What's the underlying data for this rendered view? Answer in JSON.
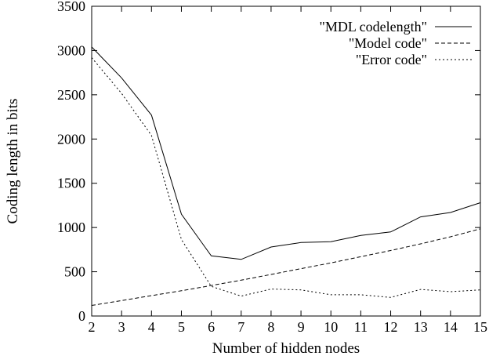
{
  "chart_data": {
    "type": "line",
    "title": "",
    "xlabel": "Number of hidden nodes",
    "ylabel": "Coding length in bits",
    "xlim": [
      2,
      15
    ],
    "ylim": [
      0,
      3500
    ],
    "x_ticks": [
      2,
      3,
      4,
      5,
      6,
      7,
      8,
      9,
      10,
      11,
      12,
      13,
      14,
      15
    ],
    "y_ticks": [
      0,
      500,
      1000,
      1500,
      2000,
      2500,
      3000,
      3500
    ],
    "grid": false,
    "legend_position": "top-right",
    "x": [
      2,
      3,
      4,
      5,
      6,
      7,
      8,
      9,
      10,
      11,
      12,
      13,
      14,
      15
    ],
    "series": [
      {
        "name": "\"MDL codelength\"",
        "style": "solid",
        "values": [
          3040,
          2690,
          2270,
          1150,
          680,
          640,
          780,
          830,
          840,
          910,
          950,
          1120,
          1170,
          1280
        ]
      },
      {
        "name": "\"Model code\"",
        "style": "dashed",
        "values": [
          120,
          175,
          230,
          285,
          345,
          405,
          470,
          535,
          600,
          670,
          740,
          815,
          895,
          985
        ]
      },
      {
        "name": "\"Error code\"",
        "style": "dotted",
        "values": [
          2920,
          2515,
          2040,
          865,
          335,
          225,
          305,
          295,
          240,
          240,
          210,
          300,
          275,
          295
        ]
      }
    ]
  }
}
